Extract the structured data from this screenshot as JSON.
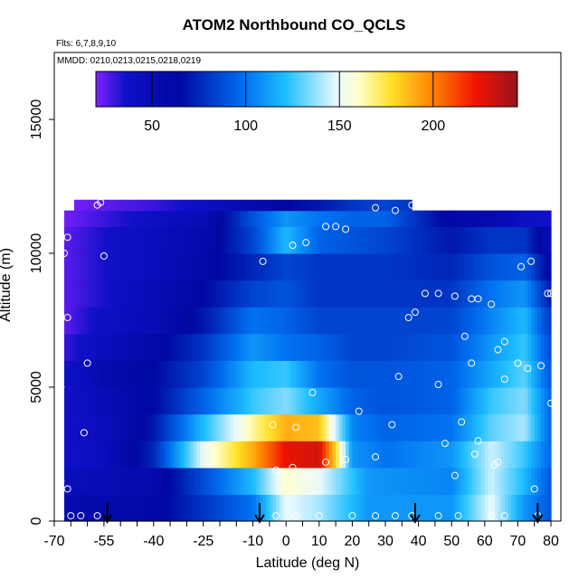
{
  "chart_data": {
    "type": "heatmap",
    "title": "ATOM2 Northbound CO_QCLS",
    "flights_label": "Flts: 6,7,8,9,10",
    "dates_label": "MMDD: 0210,0213,0215,0218,0219",
    "xlabel": "Latitude (deg N)",
    "ylabel": "Altitude (m)",
    "xlim": [
      -70,
      83
    ],
    "ylim": [
      0,
      17500
    ],
    "x_ticks": [
      -70,
      -55,
      -40,
      -25,
      -10,
      0,
      10,
      20,
      30,
      40,
      50,
      60,
      70,
      80
    ],
    "y_ticks": [
      0,
      5000,
      10000,
      15000
    ],
    "y_tick_labels": [
      "0",
      "5000",
      "10000",
      "15000"
    ],
    "colorbar": {
      "range": [
        20,
        245
      ],
      "ticks": [
        50,
        100,
        150,
        200
      ]
    },
    "grid": false,
    "heat_rows": [
      {
        "alt": 0,
        "x": [
          -67,
          -40,
          -10,
          0,
          10,
          25,
          50,
          62,
          72,
          80
        ],
        "v": [
          55,
          60,
          100,
          150,
          140,
          110,
          110,
          150,
          110,
          90
        ]
      },
      {
        "alt": 1000,
        "x": [
          -67,
          -40,
          -10,
          0,
          10,
          25,
          50,
          62,
          72,
          80
        ],
        "v": [
          45,
          55,
          120,
          160,
          150,
          110,
          105,
          145,
          120,
          90
        ]
      },
      {
        "alt": 2000,
        "x": [
          -67,
          -55,
          -40,
          -25,
          -10,
          0,
          10,
          15,
          20,
          30,
          50,
          62,
          72,
          80
        ],
        "v": [
          35,
          45,
          75,
          150,
          190,
          225,
          230,
          180,
          110,
          100,
          110,
          145,
          125,
          95
        ]
      },
      {
        "alt": 3000,
        "x": [
          -67,
          -55,
          -40,
          -25,
          -10,
          0,
          10,
          20,
          30,
          50,
          62,
          72,
          80
        ],
        "v": [
          35,
          45,
          70,
          120,
          165,
          190,
          185,
          105,
          95,
          100,
          130,
          140,
          95
        ]
      },
      {
        "alt": 4000,
        "x": [
          -67,
          -55,
          -40,
          -25,
          -10,
          0,
          10,
          20,
          30,
          50,
          62,
          72,
          80
        ],
        "v": [
          35,
          50,
          65,
          95,
          125,
          135,
          115,
          95,
          90,
          95,
          125,
          135,
          95
        ]
      },
      {
        "alt": 5000,
        "x": [
          -67,
          -55,
          -40,
          -25,
          -10,
          0,
          10,
          20,
          30,
          50,
          62,
          72,
          80
        ],
        "v": [
          35,
          55,
          65,
          85,
          120,
          125,
          100,
          90,
          90,
          95,
          115,
          130,
          90
        ]
      },
      {
        "alt": 6000,
        "x": [
          -67,
          -55,
          -40,
          -25,
          -10,
          0,
          10,
          20,
          30,
          50,
          62,
          72,
          80
        ],
        "v": [
          30,
          45,
          60,
          80,
          110,
          100,
          95,
          85,
          85,
          90,
          110,
          125,
          85
        ]
      },
      {
        "alt": 7000,
        "x": [
          -67,
          -55,
          -40,
          -25,
          -10,
          0,
          10,
          20,
          30,
          50,
          62,
          72,
          80
        ],
        "v": [
          25,
          40,
          50,
          70,
          100,
          95,
          85,
          85,
          85,
          85,
          105,
          120,
          80
        ]
      },
      {
        "alt": 8000,
        "x": [
          -67,
          -55,
          -40,
          -25,
          -10,
          0,
          10,
          20,
          30,
          50,
          62,
          72,
          80
        ],
        "v": [
          25,
          35,
          50,
          65,
          85,
          90,
          80,
          80,
          80,
          80,
          100,
          110,
          70
        ]
      },
      {
        "alt": 9000,
        "x": [
          -67,
          -55,
          -40,
          -25,
          -10,
          0,
          10,
          20,
          30,
          50,
          62,
          72,
          80
        ],
        "v": [
          25,
          35,
          45,
          60,
          75,
          85,
          80,
          80,
          80,
          75,
          90,
          95,
          60
        ]
      },
      {
        "alt": 10000,
        "x": [
          -67,
          -55,
          -40,
          -25,
          -10,
          0,
          10,
          20,
          30,
          50,
          62,
          72,
          80
        ],
        "v": [
          25,
          35,
          45,
          55,
          85,
          120,
          95,
          90,
          85,
          70,
          80,
          80,
          50
        ]
      },
      {
        "alt": 11000,
        "x": [
          -67,
          -55,
          -40,
          -25,
          -10,
          0,
          10,
          20,
          30,
          50,
          62,
          72,
          80
        ],
        "v": [
          22,
          30,
          40,
          50,
          90,
          110,
          100,
          95,
          95,
          60,
          55,
          40,
          35
        ]
      },
      {
        "alt": 11600,
        "x": [
          -64,
          -40,
          -25,
          -10,
          0,
          10,
          20,
          30,
          38
        ],
        "v": [
          22,
          30,
          40,
          55,
          65,
          70,
          80,
          85,
          80
        ]
      }
    ],
    "observations": [
      [
        -68,
        200
      ],
      [
        -65,
        200
      ],
      [
        -62,
        200
      ],
      [
        -57,
        200
      ],
      [
        -68,
        1500
      ],
      [
        -66,
        1200
      ],
      [
        -61,
        3300
      ],
      [
        -60,
        5900
      ],
      [
        -68,
        5000
      ],
      [
        -66,
        7600
      ],
      [
        -67,
        10000
      ],
      [
        -66,
        10600
      ],
      [
        -55,
        9900
      ],
      [
        -57,
        11800
      ],
      [
        -56,
        11900
      ],
      [
        -7,
        9700
      ],
      [
        2,
        10300
      ],
      [
        6,
        10400
      ],
      [
        12,
        11000
      ],
      [
        15,
        11000
      ],
      [
        18,
        10900
      ],
      [
        27,
        11700
      ],
      [
        33,
        11600
      ],
      [
        38,
        11800
      ],
      [
        -4,
        3600
      ],
      [
        3,
        3500
      ],
      [
        8,
        4800
      ],
      [
        -3,
        1900
      ],
      [
        2,
        2000
      ],
      [
        7,
        1700
      ],
      [
        12,
        2200
      ],
      [
        18,
        2300
      ],
      [
        22,
        4100
      ],
      [
        27,
        2400
      ],
      [
        32,
        3600
      ],
      [
        34,
        5400
      ],
      [
        37,
        7600
      ],
      [
        39,
        7800
      ],
      [
        42,
        8500
      ],
      [
        46,
        8500
      ],
      [
        51,
        8400
      ],
      [
        56,
        8300
      ],
      [
        58,
        8300
      ],
      [
        62,
        8100
      ],
      [
        46,
        5100
      ],
      [
        48,
        2900
      ],
      [
        51,
        1700
      ],
      [
        53,
        3700
      ],
      [
        54,
        6900
      ],
      [
        56,
        5900
      ],
      [
        57,
        2500
      ],
      [
        58,
        3000
      ],
      [
        63,
        2100
      ],
      [
        64,
        2200
      ],
      [
        64,
        6400
      ],
      [
        66,
        6700
      ],
      [
        66,
        5300
      ],
      [
        70,
        5900
      ],
      [
        71,
        9500
      ],
      [
        73,
        5700
      ],
      [
        74,
        9700
      ],
      [
        75,
        1200
      ],
      [
        77,
        5800
      ],
      [
        79,
        8500
      ],
      [
        80,
        8500
      ],
      [
        80,
        4400
      ],
      [
        -3,
        200
      ],
      [
        3,
        200
      ],
      [
        10,
        200
      ],
      [
        20,
        200
      ],
      [
        27,
        200
      ],
      [
        33,
        200
      ],
      [
        38,
        200
      ],
      [
        46,
        200
      ],
      [
        52,
        200
      ],
      [
        62,
        200
      ],
      [
        66,
        200
      ],
      [
        76,
        200
      ]
    ],
    "arrows": [
      -54,
      -8,
      39,
      76
    ]
  }
}
